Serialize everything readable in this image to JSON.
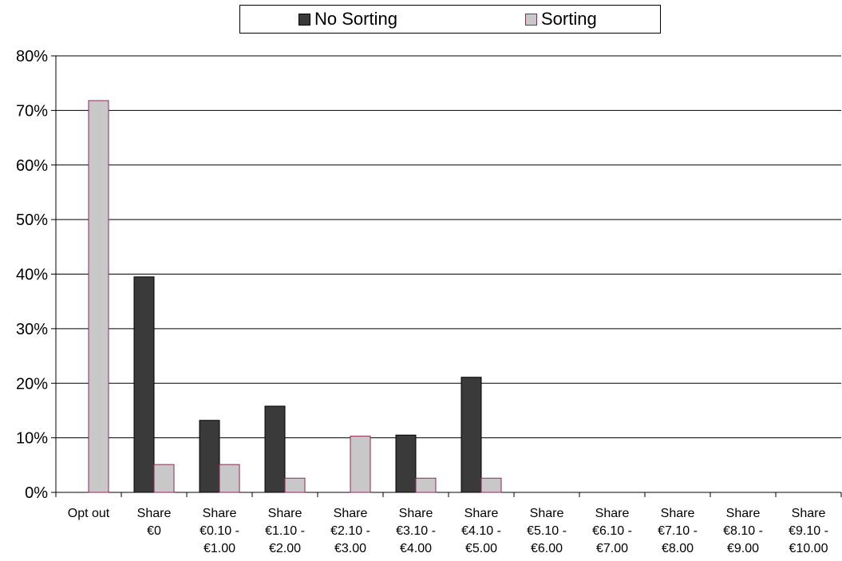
{
  "chart_data": {
    "type": "bar",
    "title": "",
    "xlabel": "",
    "ylabel": "",
    "ylim": [
      0,
      0.8
    ],
    "yticks": [
      0,
      0.1,
      0.2,
      0.3,
      0.4,
      0.5,
      0.6,
      0.7,
      0.8
    ],
    "ytick_labels": [
      "0%",
      "10%",
      "20%",
      "30%",
      "40%",
      "50%",
      "60%",
      "70%",
      "80%"
    ],
    "grid": true,
    "legend_position": "top",
    "categories": [
      [
        "Opt out"
      ],
      [
        "Share",
        "€0"
      ],
      [
        "Share",
        "€0.10 -",
        "€1.00"
      ],
      [
        "Share",
        "€1.10 -",
        "€2.00"
      ],
      [
        "Share",
        "€2.10 -",
        "€3.00"
      ],
      [
        "Share",
        "€3.10 -",
        "€4.00"
      ],
      [
        "Share",
        "€4.10 -",
        "€5.00"
      ],
      [
        "Share",
        "€5.10 -",
        "€6.00"
      ],
      [
        "Share",
        "€6.10 -",
        "€7.00"
      ],
      [
        "Share",
        "€7.10 -",
        "€8.00"
      ],
      [
        "Share",
        "€8.10 -",
        "€9.00"
      ],
      [
        "Share",
        "€9.10 -",
        "€10.00"
      ]
    ],
    "series": [
      {
        "name": "No Sorting",
        "color": "#3a3a3a",
        "border": "#000000",
        "values": [
          0,
          0.395,
          0.132,
          0.158,
          0,
          0.105,
          0.211,
          0,
          0,
          0,
          0,
          0
        ]
      },
      {
        "name": "Sorting",
        "color": "#c8c8c8",
        "border": "#8b2a5a",
        "values": [
          0.718,
          0.051,
          0.051,
          0.026,
          0.103,
          0.026,
          0.026,
          0,
          0,
          0,
          0,
          0
        ]
      }
    ]
  }
}
